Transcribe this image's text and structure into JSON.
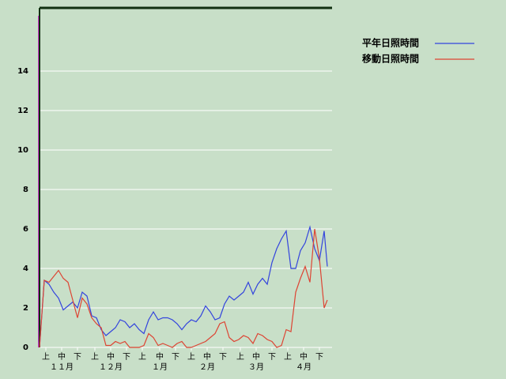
{
  "chart_data": {
    "type": "line",
    "x": [
      0,
      3,
      6,
      9,
      12,
      15,
      18,
      21,
      24,
      27,
      30,
      33,
      36,
      39,
      42,
      45,
      48,
      51,
      54,
      57,
      60,
      63,
      66,
      69,
      72,
      75,
      78,
      81,
      84,
      87,
      90,
      93,
      96,
      99,
      102,
      105,
      108,
      111,
      114,
      117,
      120,
      123,
      126,
      129,
      132,
      135,
      138,
      141,
      144,
      147,
      150,
      153,
      156,
      159,
      162,
      165,
      168,
      171,
      174,
      177,
      180,
      182
    ],
    "series": [
      {
        "name": "平年日照時間",
        "color": "#3344dd",
        "values": [
          0,
          3.4,
          3.2,
          2.8,
          2.5,
          1.9,
          2.1,
          2.3,
          2.0,
          2.8,
          2.6,
          1.6,
          1.5,
          0.9,
          0.6,
          0.8,
          1.0,
          1.4,
          1.3,
          1.0,
          1.2,
          0.9,
          0.7,
          1.4,
          1.8,
          1.4,
          1.5,
          1.5,
          1.4,
          1.2,
          0.9,
          1.2,
          1.4,
          1.3,
          1.6,
          2.1,
          1.8,
          1.4,
          1.5,
          2.2,
          2.6,
          2.4,
          2.6,
          2.8,
          3.3,
          2.7,
          3.2,
          3.5,
          3.2,
          4.3,
          5.0,
          5.5,
          5.9,
          4.0,
          4.0,
          4.9,
          5.3,
          6.1,
          5.0,
          4.4,
          5.9,
          4.1
        ]
      },
      {
        "name": "移動日照時間",
        "color": "#dd4433",
        "values": [
          0,
          3.4,
          3.3,
          3.6,
          3.9,
          3.5,
          3.3,
          2.4,
          1.5,
          2.5,
          2.2,
          1.5,
          1.2,
          1.0,
          0.1,
          0.1,
          0.3,
          0.2,
          0.3,
          0,
          0,
          0,
          0.1,
          0.7,
          0.5,
          0.1,
          0.2,
          0.1,
          0,
          0.2,
          0.3,
          0,
          0,
          0.1,
          0.2,
          0.3,
          0.5,
          0.7,
          1.2,
          1.3,
          0.5,
          0.3,
          0.4,
          0.6,
          0.5,
          0.2,
          0.7,
          0.6,
          0.4,
          0.3,
          0,
          0.1,
          0.9,
          0.8,
          2.8,
          3.5,
          4.1,
          3.3,
          6.0,
          4.5,
          2.0,
          2.4
        ]
      }
    ],
    "xlim": [
      0,
      185
    ],
    "xticks": [
      {
        "value": 4,
        "label": "上"
      },
      {
        "value": 14,
        "label": "中"
      },
      {
        "value": 24,
        "label": "下"
      },
      {
        "value": 35,
        "label": "上"
      },
      {
        "value": 45,
        "label": "中"
      },
      {
        "value": 55,
        "label": "下"
      },
      {
        "value": 65,
        "label": "上"
      },
      {
        "value": 76,
        "label": "中"
      },
      {
        "value": 86,
        "label": "下"
      },
      {
        "value": 96,
        "label": "上"
      },
      {
        "value": 106,
        "label": "中"
      },
      {
        "value": 116,
        "label": "下"
      },
      {
        "value": 127,
        "label": "上"
      },
      {
        "value": 137,
        "label": "中"
      },
      {
        "value": 147,
        "label": "下"
      },
      {
        "value": 157,
        "label": "上"
      },
      {
        "value": 167,
        "label": "中"
      },
      {
        "value": 177,
        "label": "下"
      }
    ],
    "month_ticks": [
      {
        "value": 14,
        "label": "１１月"
      },
      {
        "value": 45,
        "label": "１２月"
      },
      {
        "value": 76,
        "label": "１月"
      },
      {
        "value": 106,
        "label": "２月"
      },
      {
        "value": 137,
        "label": "３月"
      },
      {
        "value": 167,
        "label": "４月"
      }
    ],
    "ylim": [
      0,
      17.2
    ],
    "yticks": [
      0,
      2,
      4,
      6,
      8,
      10,
      12,
      14
    ],
    "grid": true
  }
}
